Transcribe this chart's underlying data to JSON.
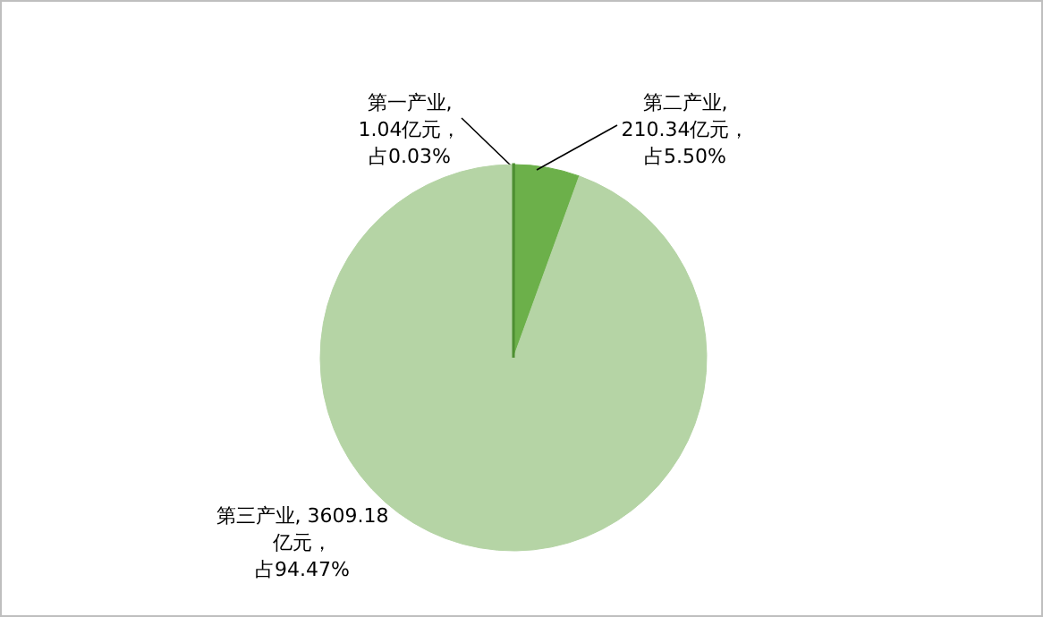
{
  "chart_data": {
    "type": "pie",
    "categories": [
      "第一产业",
      "第二产业",
      "第三产业"
    ],
    "values": [
      1.04,
      210.34,
      3609.18
    ],
    "colors": [
      "#4e8f33",
      "#6cb04a",
      "#b5d4a5"
    ],
    "value_labels": [
      ",1.04亿元，占0.03%",
      ",210.34亿元，占5.50%",
      ", 3609.18亿元，占94.47%"
    ]
  }
}
